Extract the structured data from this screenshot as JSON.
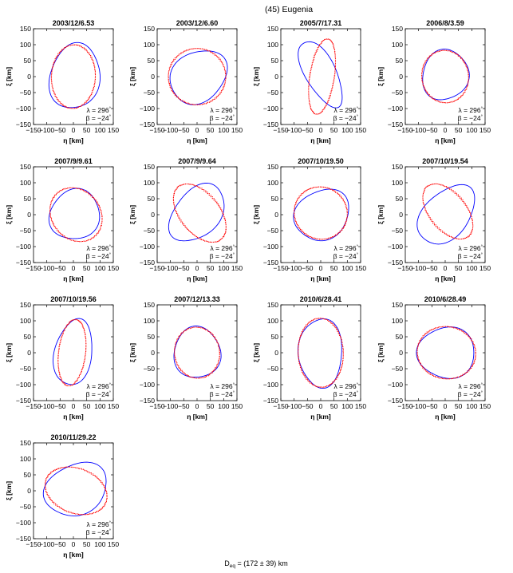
{
  "figure": {
    "title": "(45) Eugenia",
    "footer": {
      "main": "D",
      "sub": "eq",
      "rest": " = (172 ± 39) km"
    }
  },
  "chart_data": {
    "type": "scatter",
    "description_source": "occultation chord fits per epoch",
    "axes": {
      "xlabel": "η [km]",
      "ylabel": "ξ [km]",
      "xlim": [
        -150,
        150
      ],
      "ylim": [
        -150,
        150
      ],
      "xticks": [
        -150,
        -100,
        -50,
        0,
        50,
        100,
        150
      ],
      "yticks": [
        -150,
        -100,
        -50,
        0,
        50,
        100,
        150
      ],
      "xtick_labels": [
        "−150",
        "−100",
        "−50",
        "0",
        "50",
        "100",
        "150"
      ],
      "ytick_labels": [
        "−150",
        "−100",
        "−50",
        "0",
        "50",
        "100",
        "150"
      ],
      "grid": false
    },
    "annotation": {
      "lambda": "λ = 296",
      "beta": "β = −24",
      "degree": "°"
    },
    "colors": {
      "model": "#0000ff",
      "observed": "#ff0000"
    },
    "panels": [
      {
        "title": "2003/12/6.53",
        "red": {
          "a": 100,
          "b": 82,
          "rot": 80,
          "cx": 0,
          "cy": 0
        },
        "blue": {
          "a": 105,
          "b": 92,
          "rot": 60,
          "cx": 5,
          "cy": 0
        }
      },
      {
        "title": "2003/12/6.60",
        "red": {
          "a": 108,
          "b": 88,
          "rot": 5,
          "cx": 0,
          "cy": 0
        },
        "blue": {
          "a": 110,
          "b": 80,
          "rot": 20,
          "cx": 5,
          "cy": 0
        }
      },
      {
        "title": "2005/7/17.31",
        "red": {
          "a": 120,
          "b": 45,
          "rot": 78,
          "cx": 5,
          "cy": 0
        },
        "blue": {
          "a": 120,
          "b": 55,
          "rot": -55,
          "cx": 0,
          "cy": 10
        }
      },
      {
        "title": "2006/8/3.59",
        "red": {
          "a": 88,
          "b": 82,
          "rot": 0,
          "cx": 0,
          "cy": 0
        },
        "blue": {
          "a": 88,
          "b": 78,
          "rot": 15,
          "cx": 0,
          "cy": 5
        }
      },
      {
        "title": "2007/9/9.61",
        "red": {
          "a": 100,
          "b": 82,
          "rot": -20,
          "cx": 10,
          "cy": 0
        },
        "blue": {
          "a": 95,
          "b": 78,
          "rot": 10,
          "cx": 5,
          "cy": 0
        }
      },
      {
        "title": "2007/9/9.64",
        "red": {
          "a": 115,
          "b": 70,
          "rot": -40,
          "cx": 10,
          "cy": 5
        },
        "blue": {
          "a": 115,
          "b": 75,
          "rot": 35,
          "cx": 0,
          "cy": 5
        }
      },
      {
        "title": "2007/10/19.50",
        "red": {
          "a": 100,
          "b": 82,
          "rot": 0,
          "cx": 0,
          "cy": 5
        },
        "blue": {
          "a": 105,
          "b": 78,
          "rot": 15,
          "cx": 5,
          "cy": 0
        }
      },
      {
        "title": "2007/10/19.54",
        "red": {
          "a": 110,
          "b": 65,
          "rot": -40,
          "cx": 10,
          "cy": 10
        },
        "blue": {
          "a": 120,
          "b": 75,
          "rot": 35,
          "cx": 5,
          "cy": 0
        }
      },
      {
        "title": "2007/10/19.56",
        "red": {
          "a": 105,
          "b": 50,
          "rot": 80,
          "cx": -5,
          "cy": 0
        },
        "blue": {
          "a": 105,
          "b": 70,
          "rot": 75,
          "cx": 0,
          "cy": 0
        }
      },
      {
        "title": "2007/12/13.33",
        "red": {
          "a": 85,
          "b": 80,
          "rot": 0,
          "cx": 0,
          "cy": 0
        },
        "blue": {
          "a": 88,
          "b": 80,
          "rot": 0,
          "cx": 0,
          "cy": 0
        }
      },
      {
        "title": "2010/6/28.41",
        "red": {
          "a": 108,
          "b": 85,
          "rot": 90,
          "cx": 0,
          "cy": 0
        },
        "blue": {
          "a": 108,
          "b": 82,
          "rot": 90,
          "cx": 0,
          "cy": 0
        }
      },
      {
        "title": "2010/6/28.49",
        "red": {
          "a": 110,
          "b": 82,
          "rot": 0,
          "cx": 5,
          "cy": 0
        },
        "blue": {
          "a": 108,
          "b": 80,
          "rot": 0,
          "cx": 5,
          "cy": 0
        }
      },
      {
        "title": "2010/11/29.22",
        "red": {
          "a": 118,
          "b": 72,
          "rot": -12,
          "cx": 10,
          "cy": 0
        },
        "blue": {
          "a": 120,
          "b": 80,
          "rot": 15,
          "cx": 10,
          "cy": 5
        }
      }
    ]
  }
}
